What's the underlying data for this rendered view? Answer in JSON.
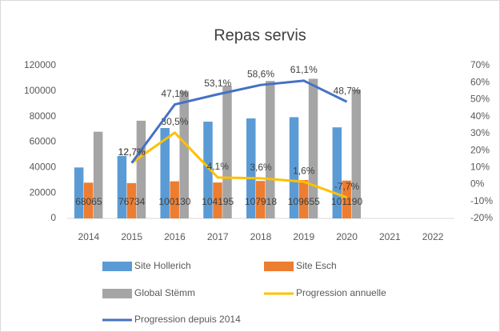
{
  "chart_data": {
    "type": "bar",
    "title": "Repas servis",
    "categories": [
      "2014",
      "2015",
      "2016",
      "2017",
      "2018",
      "2019",
      "2020",
      "2021",
      "2022"
    ],
    "ylim": [
      0,
      120000
    ],
    "yticks": [
      0,
      20000,
      40000,
      60000,
      80000,
      100000,
      120000
    ],
    "y2lim": [
      -20,
      70
    ],
    "y2ticks": [
      {
        "value": -20,
        "label": "-20%"
      },
      {
        "value": -10,
        "label": "-10%"
      },
      {
        "value": 0,
        "label": "0%"
      },
      {
        "value": 10,
        "label": "10%"
      },
      {
        "value": 20,
        "label": "20%"
      },
      {
        "value": 30,
        "label": "30%"
      },
      {
        "value": 40,
        "label": "40%"
      },
      {
        "value": 50,
        "label": "50%"
      },
      {
        "value": 60,
        "label": "60%"
      },
      {
        "value": 70,
        "label": "70%"
      }
    ],
    "series": [
      {
        "name": "Site Hollerich",
        "color": "#5b9bd5",
        "type": "bar",
        "values": [
          40000,
          49000,
          71000,
          76000,
          78500,
          79500,
          71500,
          null,
          null
        ]
      },
      {
        "name": "Site Esch",
        "color": "#ed7d31",
        "type": "bar",
        "values": [
          28065,
          27734,
          29130,
          28195,
          29418,
          30155,
          29690,
          null,
          null
        ]
      },
      {
        "name": "Global Stëmm",
        "color": "#a5a5a5",
        "type": "bar",
        "values": [
          68065,
          76734,
          100130,
          104195,
          107918,
          109655,
          101190,
          null,
          null
        ]
      },
      {
        "name": "Progression annuelle",
        "color": "#ffc000",
        "type": "line",
        "axis": "y2",
        "values": [
          null,
          12.7,
          30.5,
          4.1,
          3.6,
          1.6,
          -7.7,
          null,
          null
        ],
        "value_labels": [
          null,
          "12,7%",
          "30,5%",
          "4,1%",
          "3,6%",
          "1,6%",
          "-7,7%",
          null,
          null
        ]
      },
      {
        "name": "Progression depuis 2014",
        "color": "#4472c4",
        "type": "line",
        "axis": "y2",
        "values": [
          null,
          12.7,
          47.1,
          53.1,
          58.6,
          61.1,
          48.7,
          null,
          null
        ],
        "value_labels": [
          null,
          "12,7%",
          "47,1%",
          "53,1%",
          "58,6%",
          "61,1%",
          "48,7%",
          null,
          null
        ]
      }
    ]
  }
}
